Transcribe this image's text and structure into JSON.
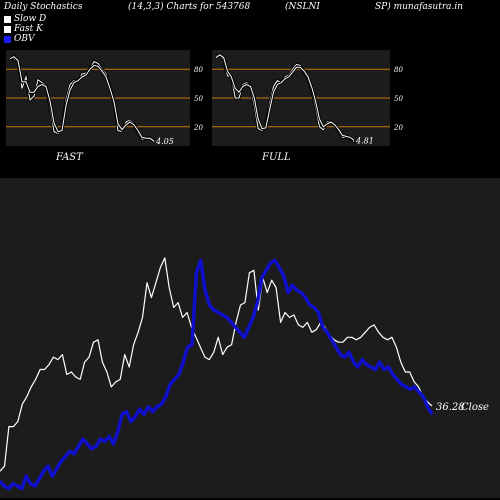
{
  "header": {
    "title": "Daily Stochastics",
    "params": "(14,3,3) Charts for 543768",
    "symbol_a": "(NSLNI",
    "symbol_b": "SP) munafasutra.in"
  },
  "legend": [
    {
      "label": "Slow  D",
      "color": "#ffffff"
    },
    {
      "label": "Fast K",
      "color": "#ffffff"
    },
    {
      "label": "OBV",
      "color": "#1a1aff"
    }
  ],
  "panels": {
    "fast": {
      "label": "FAST",
      "last_value": "4.05"
    },
    "full": {
      "label": "FULL",
      "last_value": "4.81"
    }
  },
  "colors": {
    "background": "#000000",
    "panel_bg": "#1c1c1c",
    "band": "#c8780a",
    "obv": "#1010cc",
    "price": "#ffffff"
  },
  "chart_data": [
    {
      "type": "line",
      "name": "fast",
      "ylim": [
        0,
        100
      ],
      "levels": [
        80,
        50,
        20
      ],
      "level_labels": [
        "80",
        "50",
        "20"
      ],
      "series": [
        {
          "values": [
            92,
            91,
            88,
            60,
            72,
            48,
            52,
            69,
            66,
            63,
            41,
            15,
            13,
            18,
            48,
            64,
            68,
            67,
            75,
            76,
            80,
            88,
            86,
            80,
            75,
            62,
            46,
            16,
            15,
            25,
            27,
            23,
            14,
            7,
            8,
            9,
            4.05
          ]
        },
        {
          "values": [
            91,
            93,
            89,
            67,
            67,
            56,
            56,
            62,
            64,
            62,
            47,
            24,
            15,
            16,
            42,
            58,
            66,
            68,
            72,
            74,
            80,
            84,
            83,
            78,
            72,
            60,
            46,
            23,
            17,
            22,
            25,
            22,
            16,
            9,
            8,
            8,
            5
          ]
        }
      ]
    },
    {
      "type": "line",
      "name": "full",
      "ylim": [
        0,
        100
      ],
      "levels": [
        80,
        50,
        20
      ],
      "level_labels": [
        "80",
        "50",
        "20"
      ],
      "series": [
        {
          "values": [
            94,
            94,
            90,
            73,
            72,
            50,
            50,
            64,
            66,
            62,
            42,
            18,
            16,
            20,
            45,
            62,
            68,
            66,
            72,
            74,
            80,
            85,
            84,
            77,
            70,
            58,
            40,
            20,
            17,
            25,
            26,
            22,
            15,
            9,
            9,
            8,
            4.81
          ]
        },
        {
          "values": [
            92,
            95,
            92,
            78,
            72,
            60,
            56,
            62,
            64,
            62,
            50,
            28,
            18,
            19,
            38,
            56,
            64,
            66,
            70,
            72,
            77,
            82,
            82,
            78,
            72,
            61,
            46,
            28,
            20,
            23,
            25,
            22,
            17,
            11,
            10,
            9,
            6
          ]
        }
      ]
    },
    {
      "type": "line",
      "name": "price_obv",
      "last_price_label": "36.28",
      "close_label": "Close",
      "series": [
        {
          "values": [
            10,
            12,
            28,
            28,
            30,
            37,
            40,
            44,
            47,
            51,
            51,
            53,
            56,
            55,
            57,
            49,
            50,
            48,
            47,
            54,
            56,
            62,
            63,
            54,
            50,
            44,
            46,
            47,
            57,
            52,
            61,
            66,
            72,
            86,
            80,
            86,
            92,
            96,
            84,
            76,
            78,
            72,
            74,
            68,
            64,
            60,
            56,
            55,
            58,
            64,
            57,
            60,
            61,
            70,
            77,
            78,
            90,
            91,
            75,
            88,
            82,
            87,
            84,
            70,
            74,
            72,
            73,
            69,
            68,
            70,
            66,
            67,
            70,
            68,
            65,
            63,
            62,
            62,
            64,
            64,
            63,
            64,
            66,
            68,
            69,
            66,
            64,
            63,
            64,
            60,
            54,
            50,
            50,
            46,
            44,
            40,
            38,
            36.28
          ]
        },
        {
          "values": [
            6,
            4,
            3,
            5,
            4,
            3,
            8,
            5,
            4,
            7,
            10,
            12,
            8,
            11,
            14,
            16,
            18,
            17,
            20,
            23,
            21,
            19,
            20,
            23,
            22,
            24,
            21,
            26,
            33,
            34,
            30,
            32,
            35,
            33,
            36,
            34,
            36,
            37,
            40,
            45,
            47,
            49,
            54,
            60,
            61,
            90,
            95,
            83,
            77,
            75,
            74,
            73,
            72,
            70,
            68,
            66,
            64,
            68,
            72,
            78,
            88,
            91,
            94,
            95,
            92,
            89,
            82,
            85,
            83,
            82,
            80,
            77,
            76,
            74,
            68,
            66,
            63,
            60,
            57,
            56,
            58,
            54,
            52,
            55,
            53,
            52,
            51,
            54,
            51,
            52,
            49,
            47,
            45,
            44,
            43,
            44,
            42,
            40,
            36,
            33
          ]
        }
      ]
    }
  ]
}
